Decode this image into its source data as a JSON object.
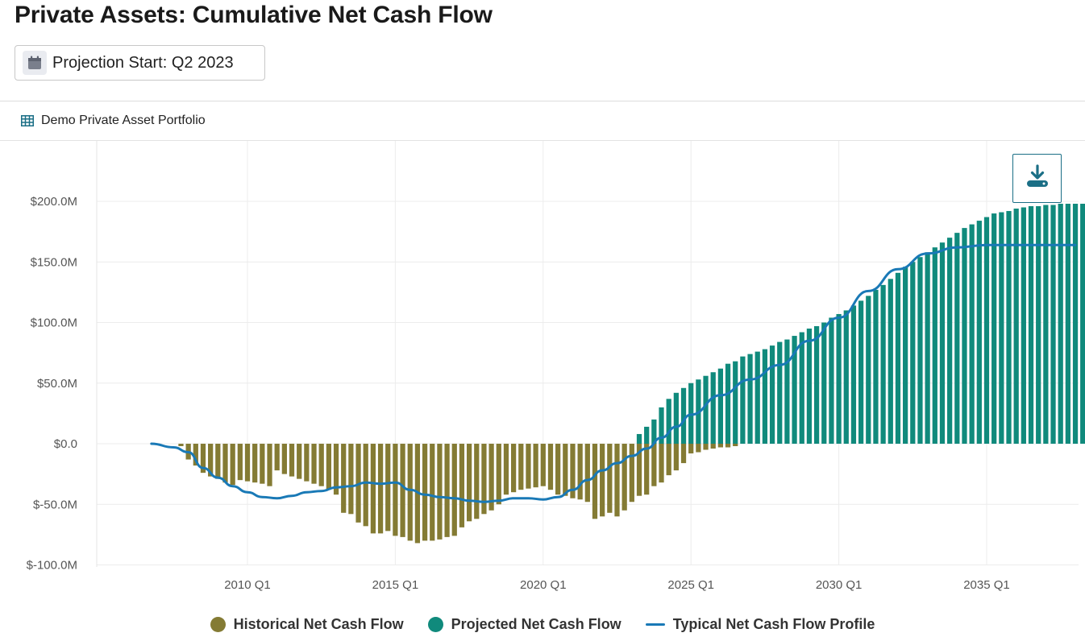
{
  "page": {
    "title": "Private Assets: Cumulative Net Cash Flow",
    "projection_label": "Projection Start: Q2 2023",
    "portfolio_name": "Demo Private Asset Portfolio"
  },
  "icons": {
    "calendar": "calendar-icon",
    "portfolio": "table-grid-icon",
    "download": "download-icon"
  },
  "colors": {
    "historical": "#847b34",
    "projected": "#108a7c",
    "typical": "#1979b6",
    "accent": "#1b6f86"
  },
  "chart_data": {
    "type": "bar",
    "x_axis": {
      "ticks": [
        "2010 Q1",
        "2015 Q1",
        "2020 Q1",
        "2025 Q1",
        "2030 Q1",
        "2035 Q1"
      ],
      "tick_years": [
        2010,
        2015,
        2020,
        2025,
        2030,
        2035
      ],
      "range": [
        2005.5,
        2038.5
      ]
    },
    "y_axis": {
      "ticks": [
        "$-100.0M",
        "$-50.0M",
        "$0.0",
        "$50.0M",
        "$100.0M",
        "$150.0M",
        "$200.0M"
      ],
      "tick_values": [
        -100,
        -50,
        0,
        50,
        100,
        150,
        200
      ],
      "range": [
        -100,
        250
      ],
      "unit": "$M"
    },
    "grid": true,
    "legend_position": "bottom-center",
    "series": [
      {
        "name": "Historical Net Cash Flow",
        "kind": "bar",
        "start": "2007 Q4",
        "values": [
          -2,
          -13,
          -18,
          -24,
          -27,
          -29,
          -32,
          -34,
          -30,
          -31,
          -32,
          -33,
          -35,
          -22,
          -25,
          -27,
          -29,
          -31,
          -33,
          -35,
          -38,
          -42,
          -57,
          -58,
          -65,
          -68,
          -74,
          -74,
          -72,
          -76,
          -77,
          -80,
          -82,
          -80,
          -80,
          -79,
          -77,
          -76,
          -69,
          -64,
          -62,
          -58,
          -55,
          -50,
          -42,
          -40,
          -38,
          -37,
          -36,
          -35,
          -38,
          -42,
          -43,
          -45,
          -46,
          -48,
          -62,
          -60,
          -57,
          -60,
          -55,
          -48,
          -43,
          -42,
          -35,
          -32,
          -26,
          -22,
          -16,
          -8,
          -7,
          -5,
          -4,
          -3,
          -3,
          -2
        ]
      },
      {
        "name": "Projected Net Cash Flow",
        "kind": "bar",
        "start": "2023 Q2",
        "values": [
          8,
          14,
          20,
          30,
          37,
          42,
          46,
          50,
          53,
          56,
          59,
          62,
          66,
          68,
          72,
          74,
          76,
          78,
          81,
          84,
          86,
          89,
          92,
          95,
          97,
          100,
          104,
          107,
          110,
          114,
          118,
          122,
          127,
          131,
          136,
          141,
          146,
          150,
          154,
          158,
          162,
          166,
          170,
          174,
          178,
          181,
          184,
          187,
          190,
          191,
          192,
          194,
          195,
          196,
          196,
          197,
          197,
          198,
          198,
          198,
          198,
          198,
          198,
          198,
          198,
          198,
          198,
          198,
          198,
          198,
          198,
          198,
          198,
          198,
          198,
          198
        ]
      },
      {
        "name": "Typical Net Cash Flow Profile",
        "kind": "line",
        "x": [
          2006.75,
          2007.5,
          2008.0,
          2008.5,
          2009.0,
          2009.5,
          2010.0,
          2010.5,
          2011.0,
          2011.5,
          2012.0,
          2012.5,
          2013.0,
          2013.5,
          2014.0,
          2014.5,
          2015.0,
          2015.5,
          2016.0,
          2016.5,
          2017.0,
          2017.5,
          2018.0,
          2018.5,
          2019.0,
          2019.5,
          2020.0,
          2020.5,
          2021.0,
          2021.5,
          2022.0,
          2022.5,
          2023.0,
          2023.5,
          2024.0,
          2024.5,
          2025.0,
          2026.0,
          2027.0,
          2028.0,
          2029.0,
          2030.0,
          2031.0,
          2032.0,
          2033.0,
          2034.0,
          2035.0,
          2036.0,
          2037.0,
          2038.0
        ],
        "y": [
          0,
          -3,
          -7,
          -20,
          -28,
          -35,
          -40,
          -44,
          -45,
          -43,
          -40,
          -39,
          -36,
          -35,
          -32,
          -33,
          -32,
          -38,
          -42,
          -44,
          -45,
          -47,
          -48,
          -47,
          -45,
          -45,
          -46,
          -44,
          -38,
          -30,
          -22,
          -16,
          -10,
          -4,
          5,
          14,
          24,
          40,
          53,
          65,
          85,
          104,
          126,
          144,
          157,
          162,
          164,
          164,
          164,
          164
        ]
      }
    ]
  }
}
